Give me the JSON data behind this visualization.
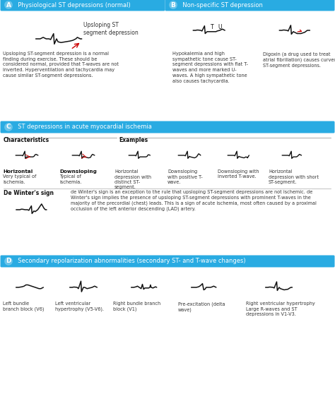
{
  "bg_color": "#ffffff",
  "header_color": "#29abe2",
  "header_text_color": "#ffffff",
  "section_a_title": "A  Physiological ST depressions (normal)",
  "section_b_title": "B  Non-specific ST depression",
  "section_c_title": "C  ST depressions in acute myocardial ischemia",
  "section_d_title": "D  Secondary repolarization abnormalities (secondary ST- and T-wave changes)",
  "body_text_color": "#222222",
  "red_color": "#cc0000",
  "annotation_A": "Upsloping ST\nsegment depression",
  "desc_A": "Upsloping ST-segment depression is a normal\nfinding during exercise. These should be\nconsidered normal, provided that T-waves are not\ninverted. Hyperventilation and tachycardia may\ncause similar ST-segment depressions.",
  "desc_B1": "Hypokalemia and high\nsympathetic tone cause ST-\nsegment depressions with flat T-\nwaves and more marked U-\nwaves. A high sympathetic tone\nalso causes tachycardia.",
  "desc_B2": "Digoxin (a drug used to treat\natrial fibrillation) causes curved\nST-segment depressions.",
  "char_label1": "Horizontal",
  "char_desc1": "Very typical of\nischemia.",
  "char_label2": "Downsloping",
  "char_desc2": "Typical of\nischemia.",
  "ex_desc1": "Horizontal\ndepression with\ndistinct ST-\nsegment.",
  "ex_desc2": "Downsloping\nwith positive T-\nwave.",
  "ex_desc3": "Downsloping with\ninverted T-wave.",
  "ex_desc4": "Horizontal\ndepression with short\nST-segment.",
  "dewinter_title": "De Winter's sign",
  "dewinter_desc": "de Winter's sign is an exception to the rule that upsloping ST-segment depressions are not ischemic. de\nWinter's sign implies the presence of upsloping ST-segment depressions with prominent T-waves in the\nmajority of the precordial (chest) leads. This is a sign of acute ischemia, most often caused by a proximal\nocclusion of the left anterior descending (LAD) artery.",
  "d_label1": "Left bundle\nbranch block (V6)",
  "d_label2": "Left ventricular\nhypertrophy (V5-V6).",
  "d_label3": "Right bundle branch\nblock (V1)",
  "d_label4": "Pre-excitation (delta\nwave)",
  "d_label5": "Right ventricular hypertrophy\nLarge R-waves and ST\ndepressions in V1-V3."
}
